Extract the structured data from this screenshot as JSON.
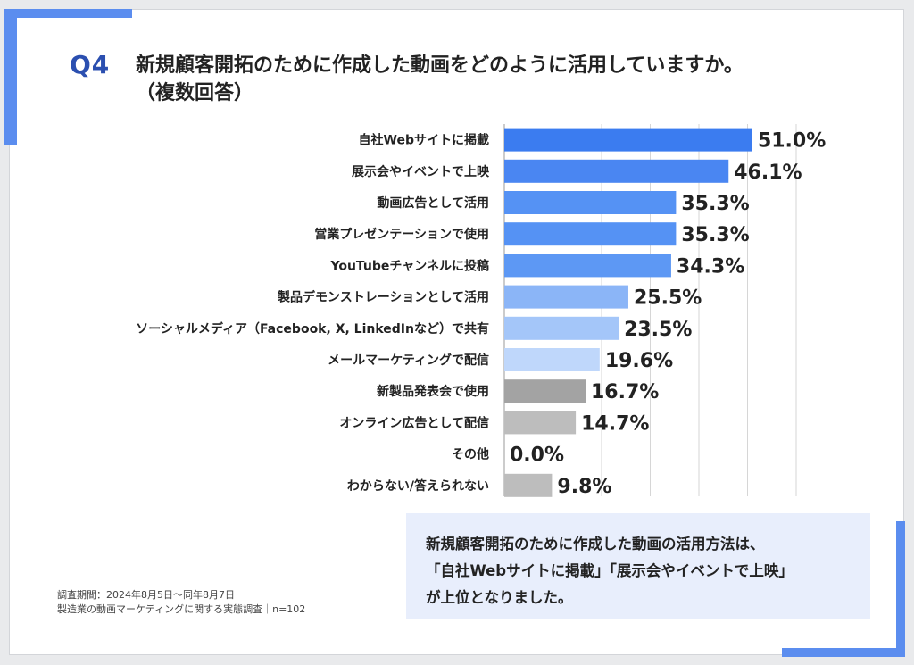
{
  "header": {
    "q_label": "Q4",
    "title_line1": "新規顧客開拓のために作成した動画をどのように活用していますか。",
    "title_line2": "（複数回答）"
  },
  "chart_data": {
    "type": "bar",
    "orientation": "horizontal",
    "categories": [
      "自社Webサイトに掲載",
      "展示会やイベントで上映",
      "動画広告として活用",
      "営業プレゼンテーションで使用",
      "YouTubeチャンネルに投稿",
      "製品デモンストレーションとして活用",
      "ソーシャルメディア（Facebook, X, LinkedInなど）で共有",
      "メールマーケティングで配信",
      "新製品発表会で使用",
      "オンライン広告として配信",
      "その他",
      "わからない/答えられない"
    ],
    "values": [
      51.0,
      46.1,
      35.3,
      35.3,
      34.3,
      25.5,
      23.5,
      19.6,
      16.7,
      14.7,
      0.0,
      9.8
    ],
    "value_labels": [
      "51.0%",
      "46.1%",
      "35.3%",
      "35.3%",
      "34.3%",
      "25.5%",
      "23.5%",
      "19.6%",
      "16.7%",
      "14.7%",
      "0.0%",
      "9.8%"
    ],
    "bar_colors": [
      "#3b7cf0",
      "#4a86f2",
      "#5592f4",
      "#5592f4",
      "#5d98f4",
      "#8bb5f7",
      "#a4c6f9",
      "#bfd7fb",
      "#a3a3a3",
      "#bdbdbd",
      "#c8c8c8",
      "#bdbdbd"
    ],
    "xlim": [
      0,
      60
    ],
    "grid": true
  },
  "note": {
    "line1": "新規顧客開拓のために作成した動画の活用方法は、",
    "line2": "「自社Webサイトに掲載」「展示会やイベントで上映」",
    "line3": "が上位となりました。"
  },
  "footer": {
    "line1": "調査期間：2024年8月5日～同年8月7日",
    "line2": "製造業の動画マーケティングに関する実態調査｜n=102"
  }
}
